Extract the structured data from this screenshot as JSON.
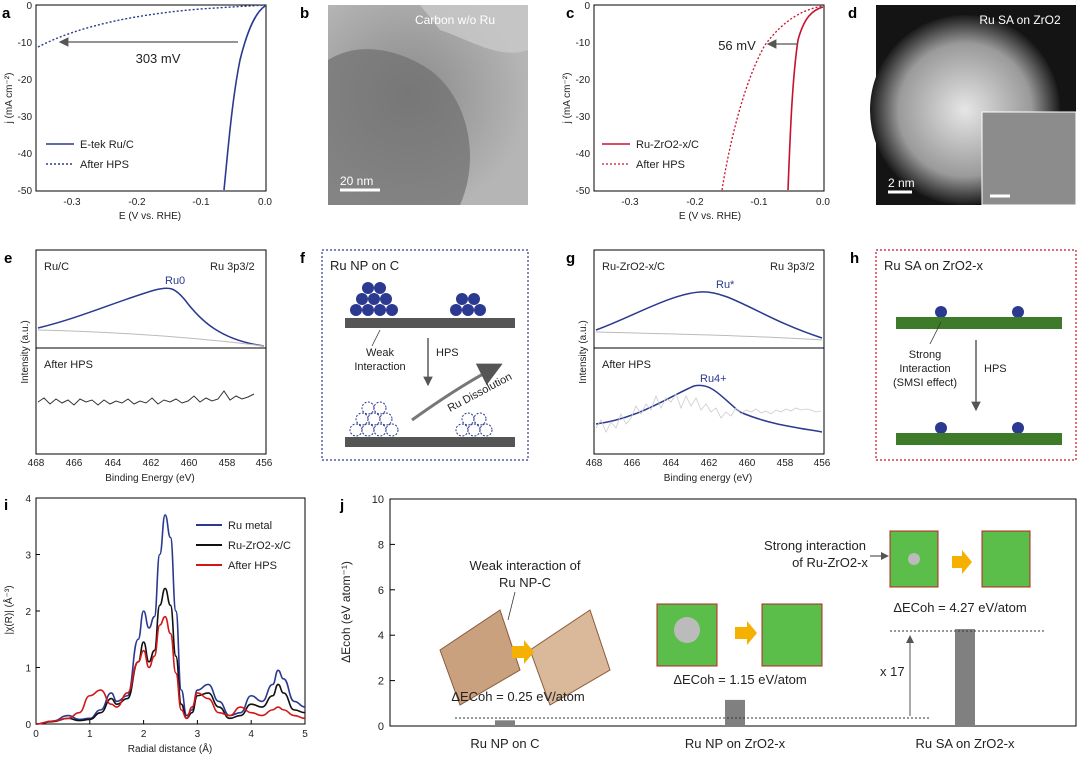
{
  "panel_labels": [
    "a",
    "b",
    "c",
    "d",
    "e",
    "f",
    "g",
    "h",
    "i",
    "j"
  ],
  "colors": {
    "blue": "#2b3990",
    "red": "#c8102e",
    "green": "#3d7a2a",
    "gray": "#555555",
    "arrow": "#f5b000"
  },
  "panel_a": {
    "xlabel": "E (V vs. RHE)",
    "ylabel": "j (mA cm⁻²)",
    "xticks": [
      "-0.3",
      "-0.2",
      "-0.1",
      "0.0"
    ],
    "yticks": [
      "0",
      "-10",
      "-20",
      "-30",
      "-40",
      "-50"
    ],
    "annotation": "303 mV",
    "legend": [
      "E-tek Ru/C",
      "After HPS"
    ]
  },
  "panel_b": {
    "label": "Carbon w/o Ru",
    "scalebar": "20 nm"
  },
  "panel_c": {
    "xlabel": "E (V vs. RHE)",
    "ylabel": "j (mA cm⁻²)",
    "xticks": [
      "-0.3",
      "-0.2",
      "-0.1",
      "0.0"
    ],
    "yticks": [
      "0",
      "-10",
      "-20",
      "-30",
      "-40",
      "-50"
    ],
    "annotation": "56 mV",
    "legend": [
      "Ru-ZrO2-x/C",
      "After HPS"
    ]
  },
  "panel_d": {
    "label": "Ru SA on ZrO2",
    "scalebar": "2 nm"
  },
  "panel_e": {
    "top_label": "Ru/C",
    "region": "Ru 3p3/2",
    "peak": "Ru0",
    "bottom_label": "After HPS",
    "xlabel": "Binding Energy (eV)",
    "ylabel": "Intensity (a.u.)",
    "xticks": [
      "468",
      "466",
      "464",
      "462",
      "460",
      "458",
      "456"
    ]
  },
  "panel_f": {
    "title": "Ru NP on C",
    "weak": "Weak",
    "interaction": "Interaction",
    "hps": "HPS",
    "dissolution": "Ru Dissolution"
  },
  "panel_g": {
    "top_label": "Ru-ZrO2-x/C",
    "region": "Ru 3p3/2",
    "peak": "Ru*",
    "bottom_label": "After HPS",
    "peak2": "Ru4+",
    "xlabel": "Binding energy (eV)",
    "ylabel": "Intensity (a.u.)",
    "xticks": [
      "468",
      "466",
      "464",
      "462",
      "460",
      "458",
      "456"
    ]
  },
  "panel_h": {
    "title": "Ru SA on ZrO2-x",
    "strong": "Strong",
    "interaction": "Interaction",
    "smsi": "(SMSI effect)",
    "hps": "HPS"
  },
  "chart_data": [
    {
      "type": "line",
      "id": "i",
      "xlabel": "Radial distance (Å)",
      "ylabel": "|χ(R)| (Å⁻³)",
      "xticks": [
        "0",
        "1",
        "2",
        "3",
        "4",
        "5"
      ],
      "yticks": [
        "0",
        "1",
        "2",
        "3",
        "4"
      ],
      "xlim": [
        0,
        5
      ],
      "ylim": [
        0,
        4
      ],
      "series": [
        {
          "name": "Ru metal",
          "color": "#2b3990",
          "x": [
            0,
            0.3,
            0.6,
            0.8,
            1.0,
            1.2,
            1.4,
            1.5,
            1.7,
            1.9,
            2.0,
            2.1,
            2.2,
            2.3,
            2.4,
            2.5,
            2.6,
            2.7,
            2.8,
            2.9,
            3.0,
            3.2,
            3.4,
            3.6,
            3.8,
            4.0,
            4.2,
            4.4,
            4.5,
            4.6,
            4.8,
            5.0
          ],
          "y": [
            0,
            0.05,
            0.15,
            0.08,
            0.1,
            0.25,
            0.55,
            0.4,
            0.5,
            1.5,
            2.0,
            1.7,
            1.9,
            3.0,
            3.7,
            3.3,
            2.0,
            0.6,
            0.15,
            0.25,
            0.6,
            0.7,
            0.4,
            0.15,
            0.2,
            0.5,
            0.4,
            0.7,
            0.95,
            0.8,
            0.4,
            0.3
          ]
        },
        {
          "name": "Ru-ZrO2-x/C",
          "color": "#111111",
          "x": [
            0,
            0.3,
            0.6,
            0.8,
            1.0,
            1.2,
            1.4,
            1.5,
            1.7,
            1.9,
            2.0,
            2.1,
            2.2,
            2.3,
            2.4,
            2.5,
            2.6,
            2.7,
            2.8,
            2.9,
            3.0,
            3.2,
            3.4,
            3.6,
            3.8,
            4.0,
            4.2,
            4.4,
            4.5,
            4.6,
            4.8,
            5.0
          ],
          "y": [
            0,
            0.04,
            0.1,
            0.06,
            0.08,
            0.2,
            0.45,
            0.35,
            0.45,
            1.1,
            1.45,
            1.1,
            1.3,
            2.1,
            2.4,
            2.1,
            1.2,
            0.35,
            0.1,
            0.2,
            0.5,
            0.55,
            0.3,
            0.1,
            0.15,
            0.35,
            0.3,
            0.5,
            0.7,
            0.55,
            0.25,
            0.2
          ]
        },
        {
          "name": "After HPS",
          "color": "#d01818",
          "x": [
            0,
            0.3,
            0.6,
            0.8,
            1.0,
            1.2,
            1.4,
            1.5,
            1.7,
            1.9,
            2.0,
            2.1,
            2.2,
            2.3,
            2.4,
            2.5,
            2.6,
            2.7,
            2.8,
            2.9,
            3.0,
            3.2,
            3.4,
            3.6,
            3.8,
            4.0,
            4.2,
            4.4,
            4.5,
            4.6,
            4.8,
            5.0
          ],
          "y": [
            0,
            0.05,
            0.1,
            0.2,
            0.5,
            0.6,
            0.35,
            0.3,
            0.55,
            1.1,
            1.3,
            1.0,
            1.2,
            1.75,
            1.9,
            1.6,
            0.9,
            0.25,
            0.1,
            0.3,
            0.55,
            0.45,
            0.2,
            0.15,
            0.3,
            0.2,
            0.15,
            0.25,
            0.3,
            0.25,
            0.15,
            0.1
          ]
        }
      ]
    },
    {
      "type": "bar",
      "id": "j",
      "ylabel": "ΔEcoh (eV atom⁻¹)",
      "categories": [
        "Ru NP on C",
        "Ru NP on ZrO2-x",
        "Ru SA on ZrO2-x"
      ],
      "values": [
        0.25,
        1.15,
        4.27
      ],
      "ylim": [
        0,
        10
      ],
      "yticks": [
        "0",
        "2",
        "4",
        "6",
        "8",
        "10"
      ],
      "bar_labels": [
        "ΔECoh = 0.25 eV/atom",
        "ΔECoh = 1.15 eV/atom",
        "ΔECoh = 4.27 eV/atom"
      ],
      "annotations": {
        "weak1": "Weak interaction of",
        "weak2": "Ru NP-C",
        "strong1": "Strong interaction",
        "strong2": "of Ru-ZrO2-x",
        "ratio": "x 17"
      }
    }
  ]
}
